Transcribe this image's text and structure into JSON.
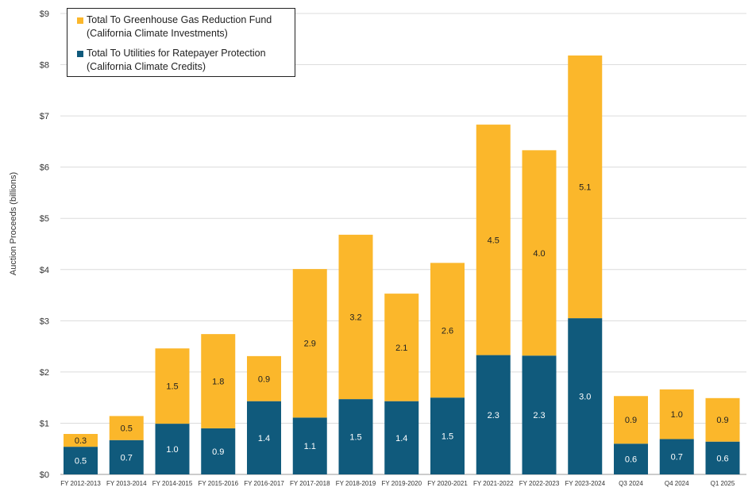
{
  "chart_data": {
    "type": "bar",
    "stacked": true,
    "ylabel": "Auction Proceeds (billions)",
    "xlabel": "",
    "ylim": [
      0,
      9
    ],
    "ytick_labels": [
      "$0",
      "$1",
      "$2",
      "$3",
      "$4",
      "$5",
      "$6",
      "$7",
      "$8",
      "$9"
    ],
    "grid": true,
    "legend_position": "top-left",
    "categories": [
      "FY 2012-2013",
      "FY 2013-2014",
      "FY 2014-2015",
      "FY 2015-2016",
      "FY 2016-2017",
      "FY 2017-2018",
      "FY 2018-2019",
      "FY 2019-2020",
      "FY 2020-2021",
      "FY 2021-2022",
      "FY 2022-2023",
      "FY 2023-2024",
      "Q3 2024",
      "Q4 2024",
      "Q1 2025"
    ],
    "series": [
      {
        "name": "Total To Utilities for Ratepayer Protection",
        "name_line2": "(California Climate Credits)",
        "color": "#105a7c",
        "values": [
          0.54,
          0.67,
          0.99,
          0.9,
          1.43,
          1.11,
          1.47,
          1.43,
          1.5,
          2.33,
          2.32,
          3.05,
          0.6,
          0.69,
          0.64
        ],
        "labels": [
          "0.5",
          "0.7",
          "1.0",
          "0.9",
          "1.4",
          "1.1",
          "1.5",
          "1.4",
          "1.5",
          "2.3",
          "2.3",
          "3.0",
          "0.6",
          "0.7",
          "0.6"
        ]
      },
      {
        "name": "Total To Greenhouse Gas Reduction Fund",
        "name_line2": "(California Climate Investments)",
        "color": "#fbb72b",
        "values": [
          0.25,
          0.47,
          1.47,
          1.84,
          0.88,
          2.9,
          3.21,
          2.1,
          2.63,
          4.5,
          4.01,
          5.13,
          0.93,
          0.97,
          0.85
        ],
        "labels": [
          "0.3",
          "0.5",
          "1.5",
          "1.8",
          "0.9",
          "2.9",
          "3.2",
          "2.1",
          "2.6",
          "4.5",
          "4.0",
          "5.1",
          "0.9",
          "1.0",
          "0.9"
        ]
      }
    ]
  }
}
